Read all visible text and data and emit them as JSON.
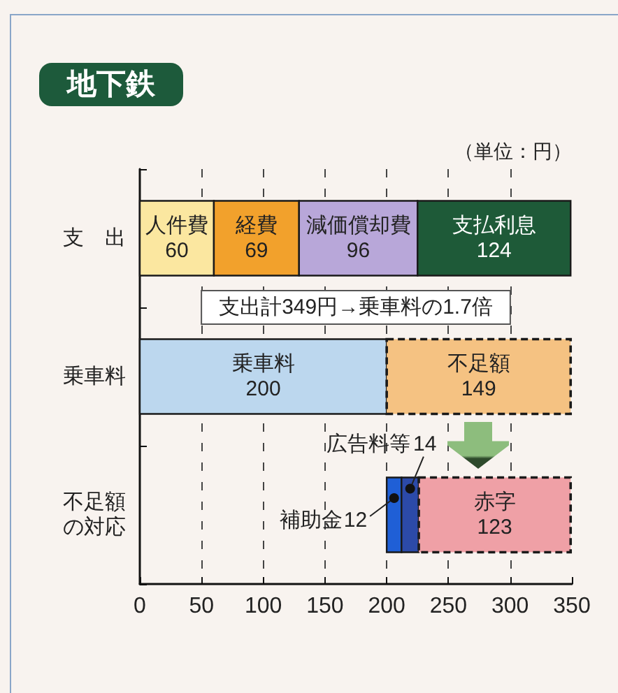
{
  "chart_data": {
    "type": "bar",
    "orientation": "horizontal",
    "title": "地下鉄",
    "annotations": [
      "（単位：円）",
      "支出計349円→乗車料の1.7倍"
    ],
    "categories": [
      "支　出",
      "乗車料",
      "不足額の対応"
    ],
    "series": [
      {
        "name": "人件費",
        "color": "#fbe7a0",
        "values": [
          60,
          null,
          null
        ],
        "base": [
          0,
          null,
          null
        ]
      },
      {
        "name": "経費",
        "color": "#f2a12c",
        "values": [
          69,
          null,
          null
        ],
        "base": [
          60,
          null,
          null
        ]
      },
      {
        "name": "減価償却費",
        "color": "#b8a7d9",
        "values": [
          96,
          null,
          null
        ],
        "base": [
          129,
          null,
          null
        ]
      },
      {
        "name": "支払利息",
        "color": "#1e5a38",
        "values": [
          124,
          null,
          null
        ],
        "base": [
          225,
          null,
          null
        ]
      },
      {
        "name": "乗車料",
        "color": "#bcd7ee",
        "values": [
          null,
          200,
          null
        ],
        "base": [
          null,
          0,
          null
        ]
      },
      {
        "name": "不足額",
        "color": "#f5c282",
        "values": [
          null,
          149,
          null
        ],
        "base": [
          null,
          200,
          null
        ],
        "line_style": "dashed"
      },
      {
        "name": "補助金",
        "color": "#1f5fd6",
        "values": [
          null,
          null,
          12
        ],
        "base": [
          null,
          null,
          200
        ]
      },
      {
        "name": "広告料等",
        "color": "#2c4aa8",
        "values": [
          null,
          null,
          14
        ],
        "base": [
          null,
          null,
          212
        ]
      },
      {
        "name": "赤字",
        "color": "#efa0a6",
        "values": [
          null,
          null,
          123
        ],
        "base": [
          null,
          null,
          226
        ],
        "line_style": "dashed"
      }
    ],
    "xlim": [
      0,
      350
    ],
    "xticks": [
      0,
      50,
      100,
      150,
      200,
      250,
      300,
      350
    ],
    "grid": "x",
    "data_labels": true
  }
}
